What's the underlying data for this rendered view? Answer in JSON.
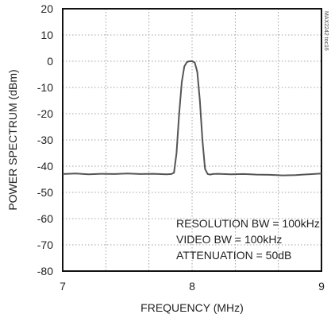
{
  "figure_id": "MAX2242 toc16",
  "chart_data": {
    "type": "line",
    "xlabel": "FREQUENCY (MHz)",
    "ylabel": "POWER SPECTRUM (dBm)",
    "xlim": [
      7,
      9
    ],
    "ylim": [
      -80,
      20
    ],
    "x_ticks": [
      7,
      8,
      9
    ],
    "y_ticks": [
      20,
      10,
      0,
      -10,
      -20,
      -30,
      -40,
      -50,
      -60,
      -70,
      -80
    ],
    "x_minor_divisions": 6,
    "grid": true,
    "grid_style": "dotted",
    "line_color": "#555555",
    "annotations": [
      "RESOLUTION BW = 100kHz",
      "VIDEO BW = 100kHz",
      "ATTENUATION = 50dB"
    ],
    "series": [
      {
        "x": [
          7.0,
          7.1,
          7.2,
          7.3,
          7.4,
          7.5,
          7.6,
          7.7,
          7.8,
          7.84,
          7.86,
          7.88,
          7.9,
          7.92,
          7.94,
          7.96,
          7.98,
          8.0,
          8.02,
          8.04,
          8.06,
          8.08,
          8.1,
          8.12,
          8.14,
          8.16,
          8.2,
          8.3,
          8.4,
          8.5,
          8.6,
          8.7,
          8.8,
          8.9,
          9.0
        ],
        "y": [
          -43,
          -42.8,
          -43.1,
          -42.9,
          -43,
          -42.8,
          -43,
          -42.9,
          -43.1,
          -43,
          -42.5,
          -35,
          -20,
          -8,
          -2,
          -0.3,
          0,
          0,
          -0.5,
          -4,
          -15,
          -30,
          -41,
          -43,
          -43.2,
          -43,
          -42.9,
          -43.1,
          -43,
          -43.2,
          -43.3,
          -43.5,
          -43.4,
          -43.1,
          -42.8
        ]
      }
    ]
  }
}
